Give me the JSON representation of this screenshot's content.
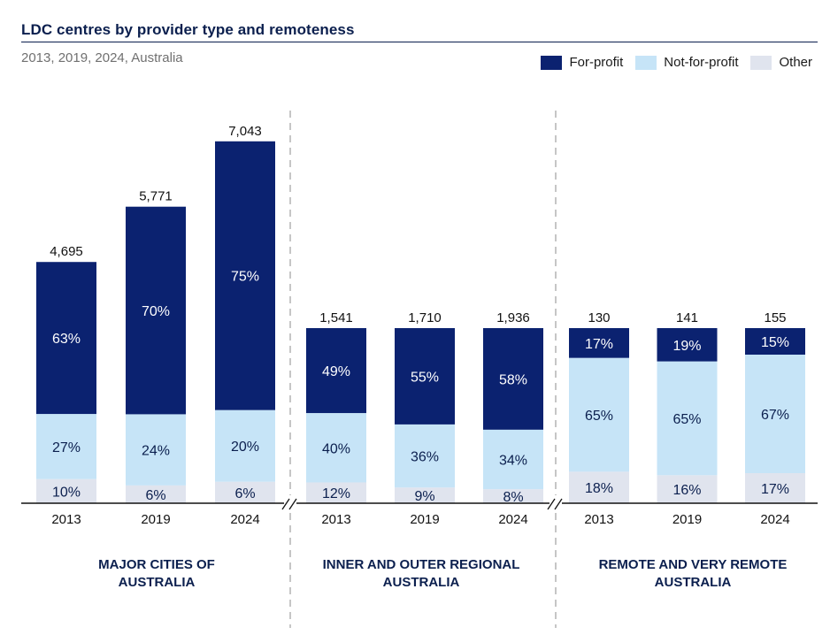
{
  "title": "LDC centres by provider type and remoteness",
  "subtitle": "2013, 2019, 2024, Australia",
  "legend": [
    {
      "label": "For-profit",
      "color": "#0b2270"
    },
    {
      "label": "Not-for-profit",
      "color": "#c6e4f7"
    },
    {
      "label": "Other",
      "color": "#e0e4ee"
    }
  ],
  "chart_data": {
    "type": "bar",
    "stacked": true,
    "value_format": "percent-of-total",
    "series": [
      {
        "name": "For-profit",
        "color": "#0b2270",
        "label_color": "#ffffff"
      },
      {
        "name": "Not-for-profit",
        "color": "#c6e4f7",
        "label_color": "#0b1f4e"
      },
      {
        "name": "Other",
        "color": "#e0e4ee",
        "label_color": "#0b1f4e"
      }
    ],
    "groups": [
      {
        "label_lines": [
          "MAJOR CITIES OF",
          "AUSTRALIA"
        ],
        "bars": [
          {
            "year": "2013",
            "total": 4695,
            "total_label": "4,695",
            "shares": [
              63,
              27,
              10
            ]
          },
          {
            "year": "2019",
            "total": 5771,
            "total_label": "5,771",
            "shares": [
              70,
              24,
              6
            ]
          },
          {
            "year": "2024",
            "total": 7043,
            "total_label": "7,043",
            "shares": [
              75,
              20,
              6
            ]
          }
        ]
      },
      {
        "label_lines": [
          "INNER AND OUTER REGIONAL",
          "AUSTRALIA"
        ],
        "bars": [
          {
            "year": "2013",
            "total": 1541,
            "total_label": "1,541",
            "shares": [
              49,
              40,
              12
            ]
          },
          {
            "year": "2019",
            "total": 1710,
            "total_label": "1,710",
            "shares": [
              55,
              36,
              9
            ]
          },
          {
            "year": "2024",
            "total": 1936,
            "total_label": "1,936",
            "shares": [
              58,
              34,
              8
            ]
          }
        ]
      },
      {
        "label_lines": [
          "REMOTE AND VERY REMOTE",
          "AUSTRALIA"
        ],
        "bars": [
          {
            "year": "2013",
            "total": 130,
            "total_label": "130",
            "shares": [
              17,
              65,
              18
            ]
          },
          {
            "year": "2019",
            "total": 141,
            "total_label": "141",
            "shares": [
              19,
              65,
              16
            ]
          },
          {
            "year": "2024",
            "total": 155,
            "total_label": "155",
            "shares": [
              15,
              67,
              17
            ]
          }
        ]
      }
    ]
  }
}
